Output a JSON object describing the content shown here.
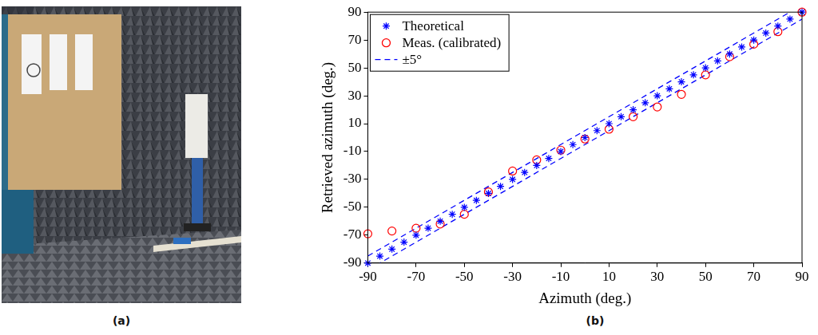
{
  "panel_labels": [
    "(a)",
    "(b)"
  ],
  "chart_data": {
    "type": "scatter",
    "x_label": "Azimuth (deg.)",
    "y_label": "Retrieved azimuth (deg.)",
    "xlim": [
      -90,
      90
    ],
    "xticks": [
      -90,
      -70,
      -50,
      -30,
      -10,
      10,
      30,
      50,
      70,
      90
    ],
    "ylim": [
      -90,
      90
    ],
    "yticks": [
      -90,
      -70,
      -50,
      -30,
      -10,
      10,
      30,
      50,
      70,
      90
    ],
    "grid": false,
    "legend": "top-left",
    "series": [
      {
        "name": "Theoretical",
        "color": "#0000ff",
        "marker": "star",
        "x": [
          -90,
          -85,
          -80,
          -75,
          -70,
          -65,
          -60,
          -55,
          -50,
          -45,
          -40,
          -35,
          -30,
          -25,
          -20,
          -15,
          -10,
          -5,
          0,
          5,
          10,
          15,
          20,
          25,
          30,
          35,
          40,
          45,
          50,
          55,
          60,
          65,
          70,
          75,
          80,
          85,
          90
        ],
        "values": [
          -90,
          -85,
          -80,
          -75,
          -70,
          -65,
          -60,
          -55,
          -50,
          -45,
          -40,
          -35,
          -30,
          -25,
          -20,
          -15,
          -10,
          -5,
          0,
          5,
          10,
          15,
          20,
          25,
          30,
          35,
          40,
          45,
          50,
          55,
          60,
          65,
          70,
          75,
          80,
          85,
          90
        ]
      },
      {
        "name": "Meas. (calibrated)",
        "color": "#ff0000",
        "marker": "circle",
        "x": [
          -90,
          -80,
          -70,
          -60,
          -50,
          -40,
          -30,
          -20,
          -10,
          0,
          10,
          20,
          30,
          40,
          50,
          60,
          70,
          80,
          90
        ],
        "values": [
          -69,
          -67,
          -65,
          -62,
          -55,
          -39,
          -24,
          -16,
          -9,
          -1,
          6,
          15,
          22,
          31,
          45,
          58,
          67,
          76,
          90
        ]
      },
      {
        "name": "±5°",
        "color": "#0000ff",
        "type": "line",
        "line_style": "dashed",
        "x": [
          -90,
          90
        ],
        "upper": [
          -85,
          95
        ],
        "lower": [
          -95,
          85
        ]
      }
    ]
  }
}
